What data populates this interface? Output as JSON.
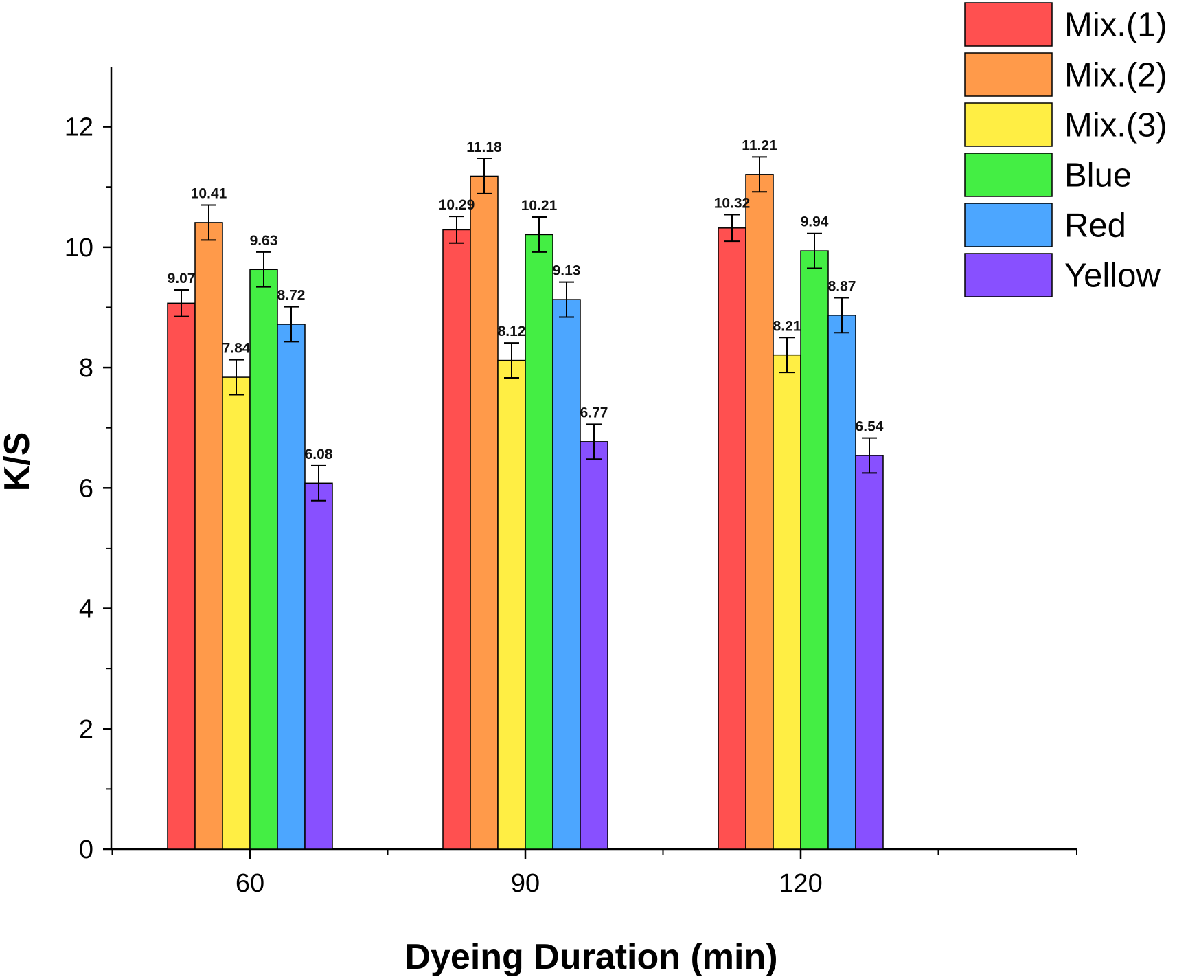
{
  "chart_data": {
    "type": "bar",
    "title": "",
    "xlabel": "Dyeing Duration (min)",
    "ylabel": "K/S",
    "categories": [
      "60",
      "90",
      "120"
    ],
    "ylim": [
      0,
      13
    ],
    "yticks": [
      0,
      2,
      4,
      6,
      8,
      10,
      12
    ],
    "grid": false,
    "legend_position": "top-right",
    "error_bars": true,
    "series": [
      {
        "name": "Mix.(1)",
        "color": "#ff5050",
        "values": [
          9.07,
          10.29,
          10.32
        ],
        "errors": [
          0.22,
          0.22,
          0.22
        ],
        "labels": [
          "9.07",
          "10.29",
          "10.32"
        ]
      },
      {
        "name": "Mix.(2)",
        "color": "#ff9a4a",
        "values": [
          10.41,
          11.18,
          11.21
        ],
        "errors": [
          0.29,
          0.29,
          0.29
        ],
        "labels": [
          "10.41",
          "11.18",
          "11.21"
        ]
      },
      {
        "name": "Mix.(3)",
        "color": "#ffee44",
        "values": [
          7.84,
          8.12,
          8.21
        ],
        "errors": [
          0.29,
          0.29,
          0.29
        ],
        "labels": [
          "7.84",
          "8.12",
          "8.21"
        ]
      },
      {
        "name": "Blue",
        "color": "#44ee44",
        "values": [
          9.63,
          10.21,
          9.94
        ],
        "errors": [
          0.29,
          0.29,
          0.29
        ],
        "labels": [
          "9.63",
          "10.21",
          "9.94"
        ]
      },
      {
        "name": "Red",
        "color": "#4ca6ff",
        "values": [
          8.72,
          9.13,
          8.87
        ],
        "errors": [
          0.29,
          0.29,
          0.29
        ],
        "labels": [
          "8.72",
          "9.13",
          "8.87"
        ]
      },
      {
        "name": "Yellow",
        "color": "#8850ff",
        "values": [
          6.08,
          6.77,
          6.54
        ],
        "errors": [
          0.29,
          0.29,
          0.29
        ],
        "labels": [
          "6.08",
          "6.77",
          "6.54"
        ]
      }
    ]
  }
}
